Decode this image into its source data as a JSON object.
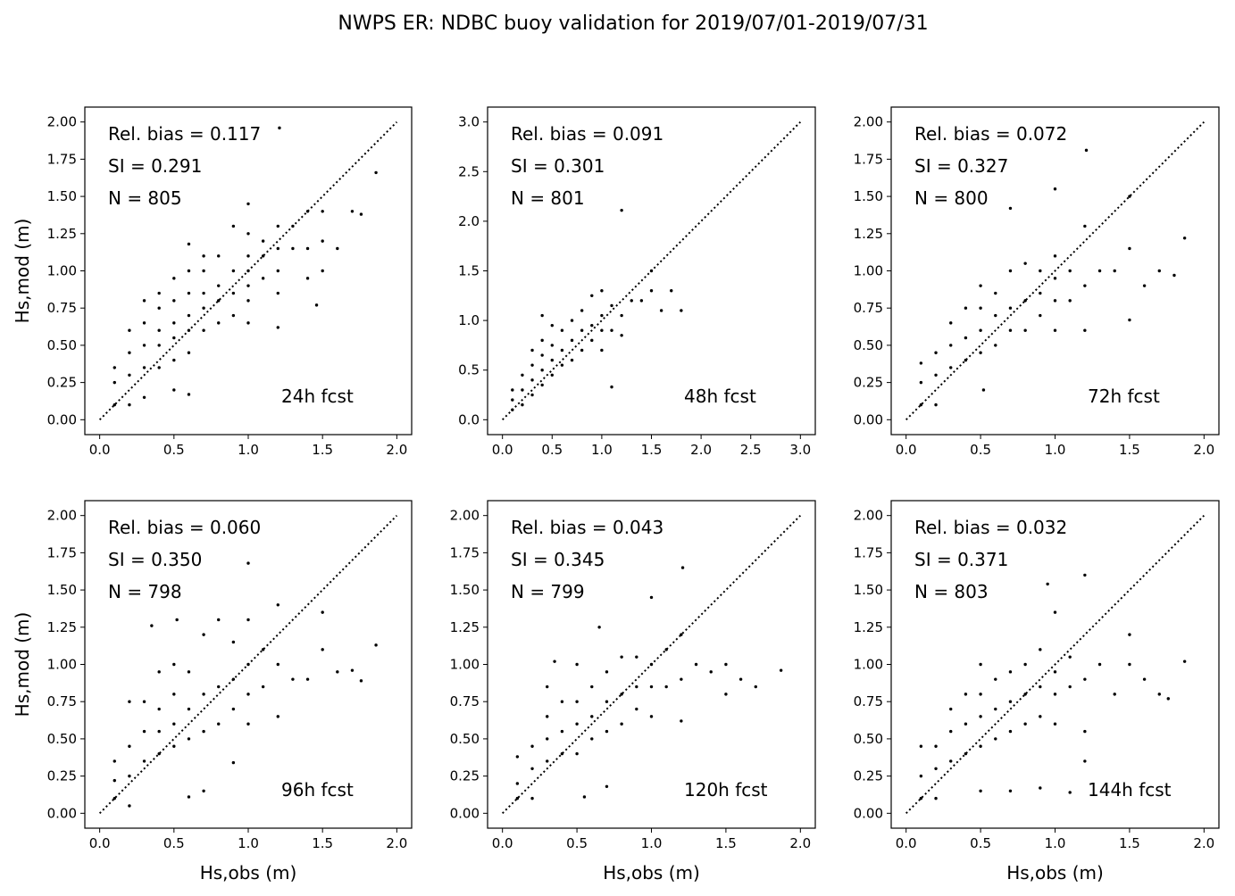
{
  "figure": {
    "title": "NWPS ER: NDBC buoy validation for 2019/07/01-2019/07/31"
  },
  "chart_data": [
    {
      "type": "scatter",
      "id": "p24",
      "title": "",
      "annotation": "24h fcst",
      "stats": [
        "Rel. bias =  0.117",
        "SI =  0.291",
        "N = 805"
      ],
      "xlabel": "",
      "ylabel": "Hs,mod (m)",
      "xlim": [
        -0.1,
        2.1
      ],
      "ylim": [
        -0.1,
        2.1
      ],
      "xticks": [
        0.0,
        0.5,
        1.0,
        1.5,
        2.0
      ],
      "yticks": [
        0.0,
        0.25,
        0.5,
        0.75,
        1.0,
        1.25,
        1.5,
        1.75,
        2.0
      ],
      "ref_line": [
        0.0,
        2.0
      ],
      "x": [
        0.1,
        0.1,
        0.1,
        0.2,
        0.2,
        0.2,
        0.2,
        0.3,
        0.3,
        0.3,
        0.3,
        0.3,
        0.4,
        0.4,
        0.4,
        0.4,
        0.4,
        0.5,
        0.5,
        0.5,
        0.5,
        0.5,
        0.6,
        0.6,
        0.6,
        0.6,
        0.6,
        0.6,
        0.7,
        0.7,
        0.7,
        0.7,
        0.7,
        0.8,
        0.8,
        0.8,
        0.8,
        0.9,
        0.9,
        0.9,
        0.9,
        1.0,
        1.0,
        1.0,
        1.0,
        1.0,
        1.0,
        1.0,
        1.1,
        1.1,
        1.1,
        1.2,
        1.2,
        1.2,
        1.2,
        1.2,
        1.3,
        1.3,
        1.4,
        1.4,
        1.4,
        1.5,
        1.5,
        1.5,
        1.6,
        1.7,
        1.76,
        1.86,
        0.5,
        0.6,
        1.21,
        1.46
      ],
      "y": [
        0.1,
        0.25,
        0.35,
        0.1,
        0.3,
        0.45,
        0.6,
        0.15,
        0.35,
        0.5,
        0.65,
        0.8,
        0.35,
        0.5,
        0.6,
        0.75,
        0.85,
        0.4,
        0.55,
        0.65,
        0.8,
        0.95,
        0.45,
        0.6,
        0.7,
        0.85,
        1.0,
        1.18,
        0.6,
        0.75,
        0.85,
        1.0,
        1.1,
        0.65,
        0.8,
        0.9,
        1.1,
        0.7,
        0.85,
        1.0,
        1.3,
        0.65,
        0.8,
        0.9,
        1.0,
        1.1,
        1.25,
        1.45,
        0.95,
        1.1,
        1.2,
        0.62,
        0.85,
        1.0,
        1.15,
        1.3,
        1.15,
        1.3,
        0.95,
        1.15,
        1.4,
        1.0,
        1.2,
        1.4,
        1.15,
        1.4,
        1.38,
        1.66,
        0.2,
        0.17,
        1.96,
        0.77
      ]
    },
    {
      "type": "scatter",
      "id": "p48",
      "title": "",
      "annotation": "48h fcst",
      "stats": [
        "Rel. bias =  0.091",
        "SI =  0.301",
        "N = 801"
      ],
      "xlabel": "",
      "ylabel": "",
      "xlim": [
        -0.15,
        3.15
      ],
      "ylim": [
        -0.15,
        3.15
      ],
      "xticks": [
        0.0,
        0.5,
        1.0,
        1.5,
        2.0,
        2.5,
        3.0
      ],
      "yticks": [
        0.0,
        0.5,
        1.0,
        1.5,
        2.0,
        2.5,
        3.0
      ],
      "ref_line": [
        0.0,
        3.0
      ],
      "x": [
        0.1,
        0.1,
        0.1,
        0.2,
        0.2,
        0.2,
        0.3,
        0.3,
        0.3,
        0.3,
        0.4,
        0.4,
        0.4,
        0.4,
        0.5,
        0.5,
        0.5,
        0.5,
        0.6,
        0.6,
        0.6,
        0.7,
        0.7,
        0.7,
        0.8,
        0.8,
        0.8,
        0.9,
        0.9,
        0.9,
        1.0,
        1.0,
        1.0,
        1.0,
        1.1,
        1.1,
        1.2,
        1.2,
        1.3,
        1.4,
        1.5,
        1.5,
        1.6,
        1.7,
        1.8,
        1.2,
        1.1,
        0.4
      ],
      "y": [
        0.1,
        0.2,
        0.3,
        0.15,
        0.3,
        0.45,
        0.25,
        0.4,
        0.55,
        0.7,
        0.35,
        0.5,
        0.65,
        0.8,
        0.45,
        0.6,
        0.75,
        0.95,
        0.55,
        0.7,
        0.9,
        0.6,
        0.8,
        1.0,
        0.7,
        0.9,
        1.1,
        0.8,
        0.95,
        1.25,
        0.7,
        0.9,
        1.05,
        1.3,
        0.9,
        1.15,
        0.85,
        1.05,
        1.2,
        1.2,
        1.3,
        1.5,
        1.1,
        1.3,
        1.1,
        2.11,
        0.33,
        1.05
      ]
    },
    {
      "type": "scatter",
      "id": "p72",
      "title": "",
      "annotation": "72h fcst",
      "stats": [
        "Rel. bias =  0.072",
        "SI =  0.327",
        "N = 800"
      ],
      "xlabel": "",
      "ylabel": "",
      "xlim": [
        -0.1,
        2.1
      ],
      "ylim": [
        -0.1,
        2.1
      ],
      "xticks": [
        0.0,
        0.5,
        1.0,
        1.5,
        2.0
      ],
      "yticks": [
        0.0,
        0.25,
        0.5,
        0.75,
        1.0,
        1.25,
        1.5,
        1.75,
        2.0
      ],
      "ref_line": [
        0.0,
        2.0
      ],
      "x": [
        0.1,
        0.1,
        0.1,
        0.2,
        0.2,
        0.2,
        0.3,
        0.3,
        0.3,
        0.4,
        0.4,
        0.4,
        0.5,
        0.5,
        0.5,
        0.5,
        0.6,
        0.6,
        0.6,
        0.7,
        0.7,
        0.7,
        0.8,
        0.8,
        0.8,
        0.9,
        0.9,
        0.9,
        1.0,
        1.0,
        1.0,
        1.0,
        1.0,
        1.1,
        1.1,
        1.2,
        1.2,
        1.2,
        1.3,
        1.4,
        1.5,
        1.5,
        1.6,
        1.7,
        1.8,
        1.87,
        1.21,
        0.52,
        1.5,
        0.7
      ],
      "y": [
        0.1,
        0.25,
        0.38,
        0.1,
        0.3,
        0.45,
        0.35,
        0.5,
        0.65,
        0.4,
        0.55,
        0.75,
        0.45,
        0.6,
        0.75,
        0.9,
        0.5,
        0.7,
        0.85,
        0.6,
        0.75,
        1.0,
        0.6,
        0.8,
        1.05,
        0.7,
        0.85,
        1.0,
        0.6,
        0.8,
        0.95,
        1.1,
        1.55,
        0.8,
        1.0,
        0.6,
        0.9,
        1.3,
        1.0,
        1.0,
        1.15,
        1.5,
        0.9,
        1.0,
        0.97,
        1.22,
        1.81,
        0.2,
        0.67,
        1.42
      ]
    },
    {
      "type": "scatter",
      "id": "p96",
      "title": "",
      "annotation": "96h fcst",
      "stats": [
        "Rel. bias =  0.060",
        "SI =  0.350",
        "N = 798"
      ],
      "xlabel": "Hs,obs (m)",
      "ylabel": "Hs,mod (m)",
      "xlim": [
        -0.1,
        2.1
      ],
      "ylim": [
        -0.1,
        2.1
      ],
      "xticks": [
        0.0,
        0.5,
        1.0,
        1.5,
        2.0
      ],
      "yticks": [
        0.0,
        0.25,
        0.5,
        0.75,
        1.0,
        1.25,
        1.5,
        1.75,
        2.0
      ],
      "ref_line": [
        0.0,
        2.0
      ],
      "x": [
        0.1,
        0.1,
        0.1,
        0.2,
        0.2,
        0.2,
        0.2,
        0.3,
        0.3,
        0.3,
        0.4,
        0.4,
        0.4,
        0.4,
        0.5,
        0.5,
        0.5,
        0.5,
        0.6,
        0.6,
        0.6,
        0.7,
        0.7,
        0.7,
        0.8,
        0.8,
        0.8,
        0.9,
        0.9,
        0.9,
        1.0,
        1.0,
        1.0,
        1.0,
        1.0,
        1.1,
        1.1,
        1.2,
        1.2,
        1.2,
        1.3,
        1.4,
        1.5,
        1.5,
        1.6,
        1.7,
        1.76,
        1.86,
        0.35,
        0.52,
        0.6,
        0.7,
        0.9
      ],
      "y": [
        0.1,
        0.22,
        0.35,
        0.05,
        0.25,
        0.45,
        0.75,
        0.35,
        0.55,
        0.75,
        0.4,
        0.55,
        0.7,
        0.95,
        0.45,
        0.6,
        0.8,
        1.0,
        0.5,
        0.7,
        0.95,
        0.55,
        0.8,
        1.2,
        0.6,
        0.85,
        1.3,
        0.7,
        0.9,
        1.15,
        0.6,
        0.8,
        1.0,
        1.3,
        1.68,
        0.85,
        1.1,
        0.65,
        1.0,
        1.4,
        0.9,
        0.9,
        1.1,
        1.35,
        0.95,
        0.96,
        0.89,
        1.13,
        1.26,
        1.3,
        0.11,
        0.15,
        0.34
      ]
    },
    {
      "type": "scatter",
      "id": "p120",
      "title": "",
      "annotation": "120h fcst",
      "stats": [
        "Rel. bias =  0.043",
        "SI =  0.345",
        "N = 799"
      ],
      "xlabel": "Hs,obs (m)",
      "ylabel": "",
      "xlim": [
        -0.1,
        2.1
      ],
      "ylim": [
        -0.1,
        2.1
      ],
      "xticks": [
        0.0,
        0.5,
        1.0,
        1.5,
        2.0
      ],
      "yticks": [
        0.0,
        0.25,
        0.5,
        0.75,
        1.0,
        1.25,
        1.5,
        1.75,
        2.0
      ],
      "ref_line": [
        0.0,
        2.0
      ],
      "x": [
        0.1,
        0.1,
        0.1,
        0.2,
        0.2,
        0.2,
        0.3,
        0.3,
        0.3,
        0.3,
        0.4,
        0.4,
        0.4,
        0.5,
        0.5,
        0.5,
        0.5,
        0.6,
        0.6,
        0.6,
        0.7,
        0.7,
        0.7,
        0.8,
        0.8,
        0.8,
        0.9,
        0.9,
        0.9,
        1.0,
        1.0,
        1.0,
        1.0,
        1.1,
        1.1,
        1.2,
        1.2,
        1.2,
        1.3,
        1.4,
        1.5,
        1.5,
        1.6,
        1.7,
        1.87,
        1.21,
        0.55,
        0.7,
        0.35,
        0.65
      ],
      "y": [
        0.1,
        0.2,
        0.38,
        0.1,
        0.3,
        0.45,
        0.35,
        0.5,
        0.65,
        0.85,
        0.4,
        0.55,
        0.75,
        0.4,
        0.6,
        0.75,
        1.0,
        0.5,
        0.65,
        0.85,
        0.55,
        0.75,
        0.95,
        0.6,
        0.8,
        1.05,
        0.7,
        0.85,
        1.05,
        0.65,
        0.85,
        1.0,
        1.45,
        0.85,
        1.1,
        0.62,
        0.9,
        1.2,
        1.0,
        0.95,
        0.8,
        1.0,
        0.9,
        0.85,
        0.96,
        1.65,
        0.11,
        0.18,
        1.02,
        1.25
      ]
    },
    {
      "type": "scatter",
      "id": "p144",
      "title": "",
      "annotation": "144h fcst",
      "stats": [
        "Rel. bias =  0.032",
        "SI =  0.371",
        "N = 803"
      ],
      "xlabel": "Hs,obs (m)",
      "ylabel": "",
      "xlim": [
        -0.1,
        2.1
      ],
      "ylim": [
        -0.1,
        2.1
      ],
      "xticks": [
        0.0,
        0.5,
        1.0,
        1.5,
        2.0
      ],
      "yticks": [
        0.0,
        0.25,
        0.5,
        0.75,
        1.0,
        1.25,
        1.5,
        1.75,
        2.0
      ],
      "ref_line": [
        0.0,
        2.0
      ],
      "x": [
        0.1,
        0.1,
        0.1,
        0.2,
        0.2,
        0.2,
        0.3,
        0.3,
        0.3,
        0.4,
        0.4,
        0.4,
        0.5,
        0.5,
        0.5,
        0.5,
        0.6,
        0.6,
        0.6,
        0.7,
        0.7,
        0.7,
        0.8,
        0.8,
        0.8,
        0.9,
        0.9,
        0.9,
        1.0,
        1.0,
        1.0,
        1.0,
        1.1,
        1.1,
        1.2,
        1.2,
        1.2,
        1.3,
        1.4,
        1.5,
        1.5,
        1.6,
        1.7,
        1.76,
        1.87,
        1.1,
        0.5,
        0.7,
        0.95,
        1.2,
        0.9
      ],
      "y": [
        0.1,
        0.25,
        0.45,
        0.1,
        0.3,
        0.45,
        0.35,
        0.55,
        0.7,
        0.4,
        0.6,
        0.8,
        0.45,
        0.65,
        0.8,
        1.0,
        0.5,
        0.7,
        0.9,
        0.55,
        0.75,
        0.95,
        0.6,
        0.8,
        1.0,
        0.65,
        0.85,
        1.1,
        0.6,
        0.8,
        0.95,
        1.35,
        0.85,
        1.05,
        0.55,
        0.9,
        1.6,
        1.0,
        0.8,
        1.0,
        1.2,
        0.9,
        0.8,
        0.77,
        1.02,
        0.14,
        0.15,
        0.15,
        1.54,
        0.35,
        0.17
      ]
    }
  ]
}
